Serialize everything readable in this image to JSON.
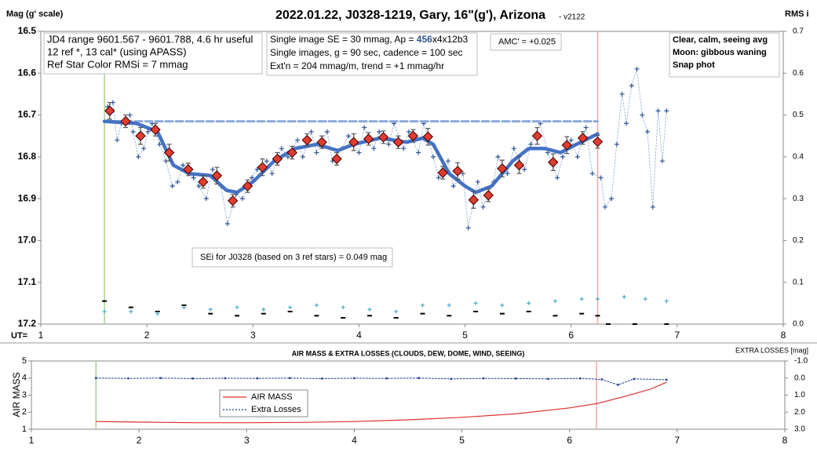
{
  "chart_data": [
    {
      "type": "scatter",
      "title": "2022.01.22, J0328-1219, Gary, 16\"(g'), Arizona",
      "subtitle": "- v2122",
      "y_label": "Mag (g' scale)",
      "y2_label": "RMS i",
      "x_label": "UT=",
      "xlim": [
        1,
        8
      ],
      "xticks": [
        1,
        2,
        3,
        4,
        5,
        6,
        7,
        8
      ],
      "ylim": [
        16.5,
        17.2
      ],
      "y_reversed": true,
      "yticks": [
        16.5,
        16.6,
        16.7,
        16.8,
        16.9,
        {
          "value": 17,
          "label": "17.0"
        },
        17.1,
        17.2
      ],
      "y2lim": [
        0,
        0.7
      ],
      "y2_reversed": false,
      "y2ticks": [
        {
          "value": 0,
          "label": "0.0"
        },
        0.1,
        0.2,
        0.3,
        0.4,
        0.5,
        0.6,
        0.7
      ],
      "vlines": [
        {
          "x": 1.6,
          "color": "#a9d18e"
        },
        {
          "x": 6.25,
          "color": "#f4a6a6"
        }
      ],
      "annotations": [
        {
          "lines": [
            "JD4 range 9601.567 - 9601.788, 4.6 hr useful",
            "12 ref *, 13 cal* (using APASS)",
            "Ref Star Color RMSi = 7 mmag"
          ]
        },
        {
          "lines": [
            [
              "Single image SE = 30 mmag, Ap = ",
              "456",
              "x4x12b3"
            ],
            "Single images, g = 90 sec, cadence = 100 sec",
            "Ext'n = 204 mmag/m, trend = +1 mmag/hr"
          ]
        },
        {
          "lines": [
            "AMC' = +0.025"
          ]
        },
        {
          "lines": [
            "Clear, calm, seeing avg",
            "Moon: gibbous waning",
            "Snap phot"
          ]
        },
        {
          "lines": [
            "SEi for J0328 (based on 3 ref stars) = 0.049 mag"
          ]
        }
      ],
      "series": [
        {
          "style": "plus",
          "connect": "dotted",
          "color": "#2f5597",
          "x": [
            1.63,
            1.68,
            1.72,
            1.76,
            1.84,
            1.87,
            1.92,
            1.97,
            2.01,
            2.05,
            2.12,
            2.18,
            2.24,
            2.29,
            2.34,
            2.44,
            2.49,
            2.56,
            2.62,
            2.7,
            2.76,
            2.84,
            2.9,
            2.99,
            3.04,
            3.13,
            3.18,
            3.27,
            3.33,
            3.42,
            3.47,
            3.55,
            3.6,
            3.7,
            3.75,
            3.84,
            3.9,
            4.0,
            4.05,
            4.14,
            4.19,
            4.28,
            4.33,
            4.42,
            4.47,
            4.56,
            4.61,
            4.7,
            4.75,
            4.84,
            4.89,
            4.98,
            5.03,
            5.12,
            5.17,
            5.27,
            5.31,
            5.4,
            5.46,
            5.56,
            5.62,
            5.71,
            5.78,
            5.87,
            5.92,
            6.0,
            6.06,
            6.14,
            6.2,
            6.28,
            6.32,
            6.38,
            6.43,
            6.48,
            6.52,
            6.57,
            6.62,
            6.67,
            6.72,
            6.77,
            6.82,
            6.86,
            6.9
          ],
          "values": [
            16.68,
            16.67,
            16.76,
            16.72,
            16.7,
            16.74,
            16.8,
            16.78,
            16.74,
            16.72,
            16.77,
            16.81,
            16.87,
            16.86,
            16.82,
            16.85,
            16.87,
            16.9,
            16.83,
            16.87,
            16.96,
            16.89,
            16.9,
            16.85,
            16.83,
            16.81,
            16.84,
            16.78,
            16.8,
            16.76,
            16.8,
            16.74,
            16.79,
            16.74,
            16.81,
            16.78,
            16.75,
            16.79,
            16.73,
            16.78,
            16.74,
            16.77,
            16.72,
            16.78,
            16.74,
            16.79,
            16.72,
            16.8,
            16.85,
            16.81,
            16.87,
            16.84,
            16.97,
            16.86,
            16.92,
            16.86,
            16.8,
            16.84,
            16.78,
            16.83,
            16.77,
            16.72,
            16.79,
            16.85,
            16.8,
            16.76,
            16.8,
            16.73,
            16.84,
            16.85,
            16.92,
            16.9,
            16.77,
            16.65,
            16.72,
            16.63,
            16.59,
            16.7,
            16.74,
            16.92,
            16.69,
            16.81,
            16.69
          ]
        },
        {
          "style": "dashed",
          "color": "#8eaadb",
          "x": [
            1.6,
            6.25
          ],
          "values": [
            16.715,
            16.715
          ]
        },
        {
          "style": "fit",
          "color": "#4472c4",
          "x": [
            1.6,
            1.9,
            2.1,
            2.25,
            2.4,
            2.6,
            2.75,
            2.85,
            3.0,
            3.2,
            3.4,
            3.6,
            3.8,
            3.95,
            4.2,
            4.45,
            4.6,
            4.7,
            4.85,
            5.0,
            5.1,
            5.25,
            5.45,
            5.6,
            5.75,
            5.9,
            6.05,
            6.25
          ],
          "values": [
            16.715,
            16.72,
            16.74,
            16.82,
            16.84,
            16.845,
            16.88,
            16.885,
            16.86,
            16.81,
            16.78,
            16.77,
            16.785,
            16.77,
            16.755,
            16.765,
            16.755,
            16.77,
            16.84,
            16.87,
            16.885,
            16.87,
            16.81,
            16.78,
            16.78,
            16.79,
            16.77,
            16.745
          ]
        },
        {
          "style": "diamond",
          "color": "#e03c31",
          "x": [
            1.65,
            1.8,
            1.94,
            2.08,
            2.21,
            2.39,
            2.53,
            2.66,
            2.81,
            2.95,
            3.09,
            3.23,
            3.37,
            3.51,
            3.65,
            3.79,
            3.95,
            4.09,
            4.23,
            4.37,
            4.51,
            4.65,
            4.79,
            4.93,
            5.08,
            5.22,
            5.35,
            5.51,
            5.68,
            5.83,
            5.96,
            6.11,
            6.25
          ],
          "values": [
            16.69,
            16.715,
            16.75,
            16.735,
            16.79,
            16.83,
            16.86,
            16.845,
            16.905,
            16.87,
            16.825,
            16.805,
            16.79,
            16.76,
            16.765,
            16.805,
            16.765,
            16.757,
            16.753,
            16.765,
            16.75,
            16.752,
            16.838,
            16.834,
            16.903,
            16.892,
            16.828,
            16.82,
            16.75,
            16.813,
            16.772,
            16.755,
            16.764
          ],
          "errors": [
            0.02,
            0.015,
            0.02,
            0.015,
            0.02,
            0.015,
            0.015,
            0.02,
            0.015,
            0.015,
            0.02,
            0.015,
            0.015,
            0.015,
            0.015,
            0.015,
            0.02,
            0.015,
            0.015,
            0.015,
            0.015,
            0.02,
            0.015,
            0.02,
            0.02,
            0.015,
            0.02,
            0.02,
            0.02,
            0.02,
            0.02,
            0.015,
            0.015
          ]
        },
        {
          "style": "dash",
          "axis": "y2",
          "color": "#000000",
          "x": [
            1.6,
            1.85,
            2.1,
            2.35,
            2.6,
            2.85,
            3.1,
            3.35,
            3.6,
            3.85,
            4.1,
            4.35,
            4.6,
            4.85,
            5.1,
            5.35,
            5.6,
            5.85,
            6.1,
            6.25,
            6.35,
            6.6,
            6.9
          ],
          "values": [
            0.055,
            0.04,
            0.03,
            0.045,
            0.025,
            0.02,
            0.025,
            0.03,
            0.02,
            0.015,
            0.02,
            0.015,
            0.025,
            0.02,
            0.03,
            0.025,
            0.03,
            0.02,
            0.025,
            0.02,
            0,
            0,
            0
          ]
        },
        {
          "style": "plus",
          "axis": "y2",
          "color": "#4bacc6",
          "x": [
            1.6,
            1.85,
            2.1,
            2.35,
            2.6,
            2.85,
            3.1,
            3.35,
            3.6,
            3.85,
            4.1,
            4.35,
            4.6,
            4.85,
            5.1,
            5.35,
            5.6,
            5.85,
            6.1,
            6.25,
            6.5,
            6.7,
            6.9
          ],
          "values": [
            0.03,
            0.03,
            0.025,
            0.04,
            0.035,
            0.04,
            0.035,
            0.04,
            0.045,
            0.04,
            0.035,
            0.03,
            0.045,
            0.045,
            0.05,
            0.045,
            0.05,
            0.055,
            0.06,
            0.06,
            0.065,
            0.06,
            0.055
          ]
        }
      ]
    },
    {
      "type": "line",
      "title": "AIR MASS & EXTRA LOSSES (CLOUDS, DEW, DOME, WIND, SEEING)",
      "y_label": "AIR MASS",
      "y2_label": "EXTRA LOSSES [mag]",
      "xlim": [
        1,
        8
      ],
      "xticks": [
        1,
        2,
        3,
        4,
        5,
        6,
        7,
        8
      ],
      "ylim": [
        1,
        5
      ],
      "y_reversed": false,
      "yticks": [
        1,
        2,
        3,
        4,
        5
      ],
      "y2lim": [
        -1,
        3
      ],
      "y2_reversed": true,
      "y2ticks": [
        {
          "value": -1,
          "label": "-1.0"
        },
        {
          "value": 0,
          "label": "0.0"
        },
        {
          "value": 1,
          "label": "1.0"
        },
        {
          "value": 2,
          "label": "2.0"
        },
        {
          "value": 3,
          "label": "3.0"
        }
      ],
      "vlines": [
        {
          "x": 1.6,
          "color": "#a9d18e"
        },
        {
          "x": 6.25,
          "color": "#f4a6a6"
        }
      ],
      "series": [
        {
          "name": "AIR MASS",
          "style": "line",
          "color": "#d9342b",
          "x": [
            1.6,
            2.0,
            2.5,
            3.0,
            3.5,
            4.0,
            4.5,
            5.0,
            5.5,
            6.0,
            6.25,
            6.5,
            6.75,
            6.9
          ],
          "values": [
            1.45,
            1.42,
            1.38,
            1.38,
            1.4,
            1.45,
            1.55,
            1.7,
            1.9,
            2.25,
            2.5,
            2.9,
            3.35,
            3.75
          ]
        },
        {
          "name": "Extra Losses",
          "style": "dotted",
          "axis": "y2",
          "color": "#1f3a8a",
          "x": [
            1.6,
            1.9,
            2.2,
            2.5,
            2.8,
            3.1,
            3.4,
            3.7,
            4.0,
            4.3,
            4.6,
            4.9,
            5.2,
            5.5,
            5.8,
            6.1,
            6.3,
            6.45,
            6.6,
            6.9
          ],
          "values": [
            0.0,
            0.02,
            0.0,
            0.03,
            0.01,
            0.02,
            0.0,
            0.03,
            0.01,
            0.02,
            0.0,
            0.05,
            0.02,
            0.03,
            0.05,
            0.02,
            0.08,
            0.4,
            0.05,
            0.1
          ]
        }
      ]
    }
  ]
}
